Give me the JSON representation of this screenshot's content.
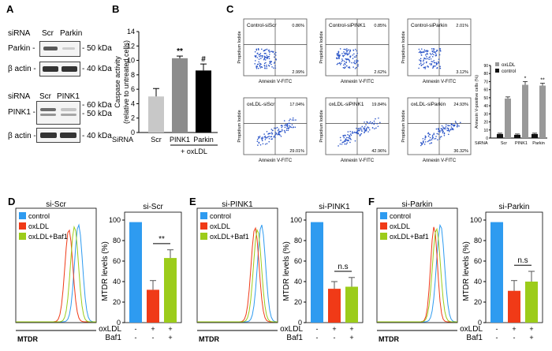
{
  "panels": {
    "A": "A",
    "B": "B",
    "C": "C",
    "D": "D",
    "E": "E",
    "F": "F"
  },
  "panelA": {
    "blot1": {
      "sirna_label": "siRNA",
      "lanes": [
        "Scr",
        "Parkin"
      ],
      "rows": [
        {
          "name": "Parkin -",
          "mw": "- 50 kDa"
        },
        {
          "name": "β actin -",
          "mw": "- 40 kDa"
        }
      ]
    },
    "blot2": {
      "sirna_label": "siRNA",
      "lanes": [
        "Scr",
        "PINK1"
      ],
      "rows": [
        {
          "name": "PINK1 -",
          "mw": "- 60 kDa",
          "mw2": "- 50 kDa"
        },
        {
          "name": "β actin -",
          "mw": "- 40 kDa"
        }
      ]
    }
  },
  "panelC": {
    "dot_titles": [
      "Control-siScr",
      "Control-siPINK1",
      "Control-siParkin",
      "oxLDL-siScr",
      "oxLDL-siPINK1",
      "oxLDL-siParkin"
    ],
    "ur": [
      "0.86%",
      "0.85%",
      "2.01%",
      "17.04%",
      "19.84%",
      "24.93%"
    ],
    "lr": [
      "2.99%",
      "2.62%",
      "3.12%",
      "29.01%",
      "42.96%",
      "36.32%"
    ],
    "xlabel": "Annexin V-FITC",
    "ylabel": "Propidium Iodide"
  },
  "colors": {
    "control": "#2e9bf0",
    "oxldl": "#f03a17",
    "baf": "#9ccc1a"
  },
  "hist": {
    "xlabel": "MTDR",
    "legend": [
      "control",
      "oxLDL",
      "oxLDL+Baf1"
    ],
    "titles": [
      "si-Scr",
      "si-PINK1",
      "si-Parkin"
    ]
  },
  "bar_row_labels": {
    "oxldl": "oxLDL",
    "baf": "Baf1",
    "signs_ox": [
      "-",
      "+",
      "+"
    ],
    "signs_baf": [
      "-",
      "-",
      "+"
    ]
  },
  "chart_data": [
    {
      "id": "B",
      "type": "bar",
      "title": "",
      "ylabel": "Caspase activity",
      "ylabel2": "(relative to untreated cells)",
      "categories": [
        "Scr",
        "PINK1",
        "Parkin"
      ],
      "values": [
        5,
        10.3,
        8.6
      ],
      "errors": [
        1.1,
        0.3,
        0.9
      ],
      "colors": [
        "#c8c8c8",
        "#8c8c8c",
        "#000000"
      ],
      "ylim": [
        0,
        14
      ],
      "yticks": [
        0,
        2,
        4,
        6,
        8,
        10,
        12,
        14
      ],
      "annotations": [
        "",
        "**",
        "#"
      ],
      "row_label": "SiRNA",
      "group_label": "+ oxLDL"
    },
    {
      "id": "C",
      "type": "bar",
      "title": "",
      "ylabel": "Annexin V-positive cells (%)",
      "categories": [
        "Scr",
        "PINK1",
        "Parkin"
      ],
      "series": [
        {
          "name": "control",
          "values": [
            5,
            4,
            5
          ],
          "color": "#111111"
        },
        {
          "name": "oxLDL",
          "values": [
            49,
            66,
            65
          ],
          "color": "#999999"
        }
      ],
      "errors_control": [
        1,
        1,
        1
      ],
      "errors_oxldl": [
        2,
        4,
        3
      ],
      "ylim": [
        0,
        90
      ],
      "yticks": [
        0,
        10,
        20,
        30,
        40,
        50,
        60,
        70,
        80,
        90
      ],
      "annotations": [
        "",
        "*",
        "**"
      ],
      "row_label": "SiRNA",
      "legend": [
        "oxLDL",
        "control"
      ]
    },
    {
      "id": "D",
      "type": "bar",
      "title": "si-Scr",
      "ylabel": "MTDR levels (%)",
      "categories": [
        "control",
        "oxLDL",
        "oxLDL+Baf1"
      ],
      "values": [
        98,
        32,
        63
      ],
      "errors": [
        0,
        9,
        8
      ],
      "ylim": [
        0,
        100
      ],
      "yticks": [
        0,
        20,
        40,
        60,
        80,
        100
      ],
      "annotation": "**"
    },
    {
      "id": "E",
      "type": "bar",
      "title": "si-PINK1",
      "ylabel": "MTDR levels (%)",
      "categories": [
        "control",
        "oxLDL",
        "oxLDL+Baf1"
      ],
      "values": [
        98,
        33,
        35
      ],
      "errors": [
        0,
        7,
        9
      ],
      "ylim": [
        0,
        100
      ],
      "yticks": [
        0,
        20,
        40,
        60,
        80,
        100
      ],
      "annotation": "n.s"
    },
    {
      "id": "F",
      "type": "bar",
      "title": "si-Parkin",
      "ylabel": "MTDR levels (%)",
      "categories": [
        "control",
        "oxLDL",
        "oxLDL+Baf1"
      ],
      "values": [
        98,
        31,
        40
      ],
      "errors": [
        0,
        10,
        10
      ],
      "ylim": [
        0,
        100
      ],
      "yticks": [
        0,
        20,
        40,
        60,
        80,
        100
      ],
      "annotation": "n.s"
    }
  ]
}
